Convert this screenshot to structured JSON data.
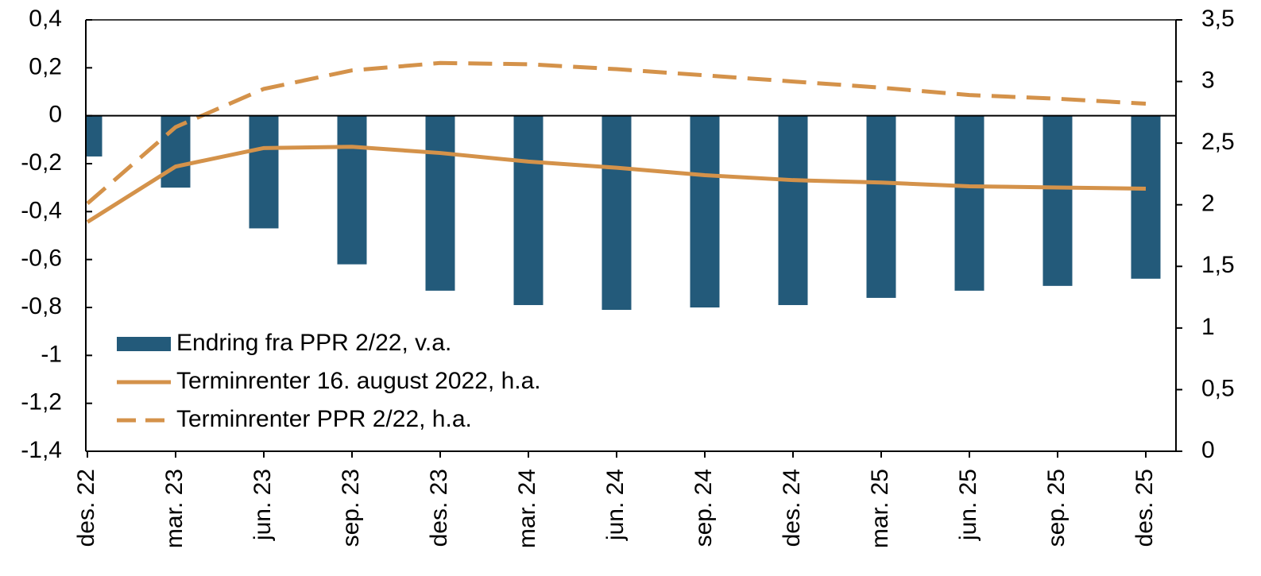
{
  "chart_data": {
    "type": "bar_line",
    "categories": [
      "des. 22",
      "mar. 23",
      "jun. 23",
      "sep. 23",
      "des. 23",
      "mar. 24",
      "jun. 24",
      "sep. 24",
      "des. 24",
      "mar. 25",
      "jun. 25",
      "sep. 25",
      "des. 25"
    ],
    "series": [
      {
        "name": "Endring fra PPR 2/22, v.a.",
        "type": "bar",
        "color": "#235a7a",
        "values": [
          -0.17,
          -0.3,
          -0.47,
          -0.62,
          -0.73,
          -0.79,
          -0.81,
          -0.8,
          -0.79,
          -0.76,
          -0.73,
          -0.71,
          -0.68
        ]
      },
      {
        "name": "Terminrenter 16. august 2022, h.a.",
        "type": "line",
        "axis": "y2",
        "color": "#d4924a",
        "dash": false,
        "values": [
          1.86,
          2.31,
          2.46,
          2.47,
          2.42,
          2.35,
          2.3,
          2.24,
          2.2,
          2.18,
          2.15,
          2.14,
          2.13
        ]
      },
      {
        "name": "Terminrenter PPR 2/22, h.a.",
        "type": "line",
        "axis": "y2",
        "color": "#d4924a",
        "dash": true,
        "values": [
          2.01,
          2.63,
          2.94,
          3.09,
          3.15,
          3.14,
          3.1,
          3.05,
          3.0,
          2.95,
          2.89,
          2.86,
          2.82
        ]
      }
    ],
    "ylim": [
      -1.4,
      0.4
    ],
    "yticks": [
      {
        "value": 0.4,
        "label": "0,4"
      },
      {
        "value": 0.2,
        "label": "0,2"
      },
      0,
      {
        "value": -0.2,
        "label": "-0,2"
      },
      {
        "value": -0.4,
        "label": "-0,4"
      },
      {
        "value": -0.6,
        "label": "-0,6"
      },
      {
        "value": -0.8,
        "label": "-0,8"
      },
      -1,
      {
        "value": -1.2,
        "label": "-1,2"
      },
      {
        "value": -1.4,
        "label": "-1,4"
      }
    ],
    "y2lim": [
      0,
      3.5
    ],
    "y2ticks": [
      {
        "value": 3.5,
        "label": "3,5"
      },
      3,
      {
        "value": 2.5,
        "label": "2,5"
      },
      2,
      {
        "value": 1.5,
        "label": "1,5"
      },
      1,
      {
        "value": 0.5,
        "label": "0,5"
      },
      0
    ],
    "legend": "lower left"
  }
}
